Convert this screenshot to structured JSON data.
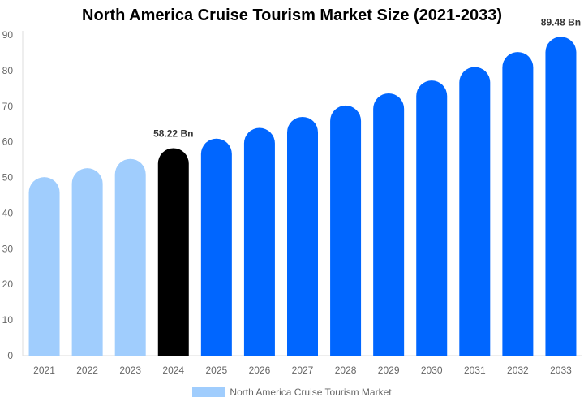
{
  "chart_data": {
    "type": "bar",
    "title": "North America Cruise Tourism Market Size (2021-2033)",
    "categories": [
      "2021",
      "2022",
      "2023",
      "2024",
      "2025",
      "2026",
      "2027",
      "2028",
      "2029",
      "2030",
      "2031",
      "2032",
      "2033"
    ],
    "series": [
      {
        "name": "North America Cruise Tourism Market",
        "values": [
          50.1,
          52.6,
          55.2,
          58.22,
          60.9,
          63.9,
          67.0,
          70.2,
          73.6,
          77.2,
          81.0,
          85.2,
          89.48
        ]
      }
    ],
    "bar_colors": [
      "#a0cdfd",
      "#a0cdfd",
      "#a0cdfd",
      "#000000",
      "#0066ff",
      "#0066ff",
      "#0066ff",
      "#0066ff",
      "#0066ff",
      "#0066ff",
      "#0066ff",
      "#0066ff",
      "#0066ff"
    ],
    "data_labels": [
      {
        "index": 3,
        "text": "58.22 Bn"
      },
      {
        "index": 12,
        "text": "89.48 Bn"
      }
    ],
    "yticks": [
      0,
      10,
      20,
      30,
      40,
      50,
      60,
      70,
      80,
      90
    ],
    "ylim": [
      0,
      90
    ],
    "xlabel": "",
    "ylabel": "",
    "grid": false,
    "legend_position": "bottom"
  }
}
